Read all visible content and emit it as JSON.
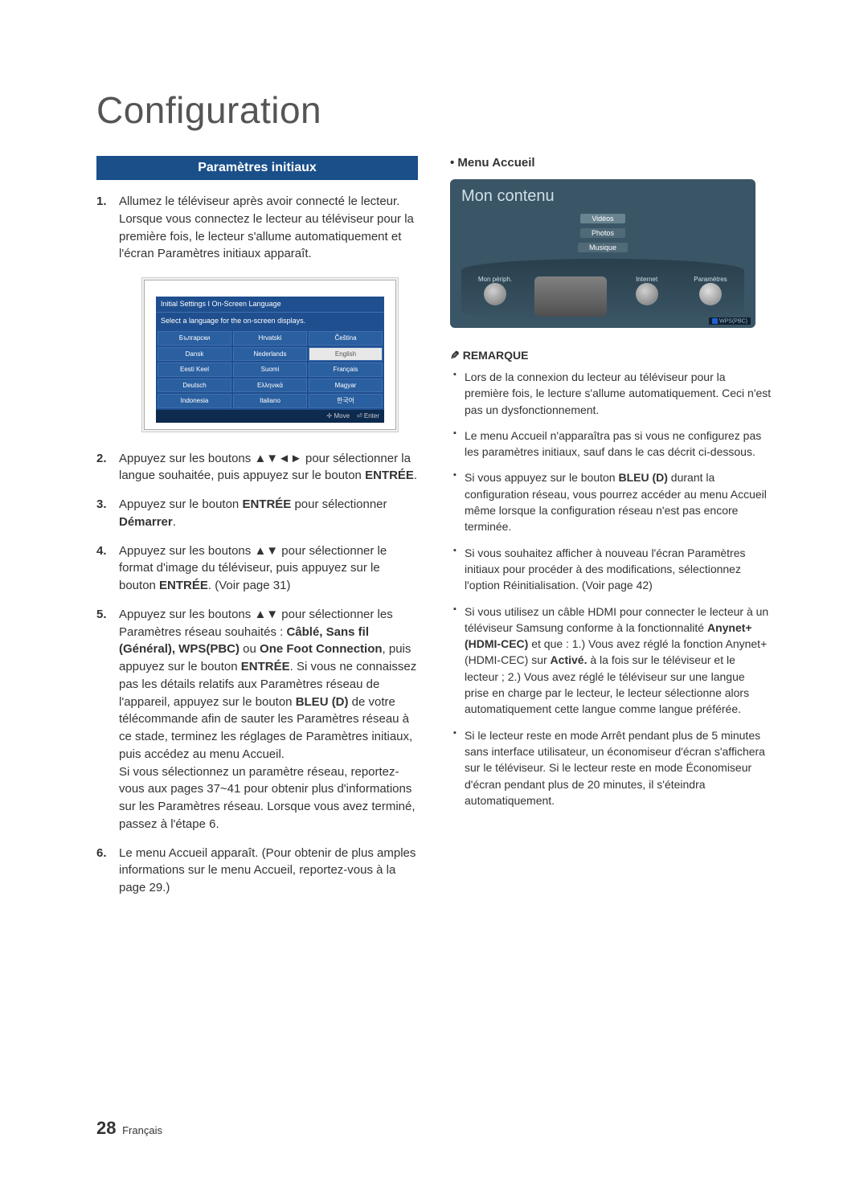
{
  "title": "Configuration",
  "section_title": "Paramètres initiaux",
  "steps": {
    "s1": "Allumez le téléviseur après avoir connecté le lecteur. Lorsque vous connectez le lecteur au téléviseur pour la première fois, le lecteur s'allume automatiquement et l'écran Paramètres initiaux apparaît.",
    "s2_a": "Appuyez sur les boutons ",
    "s2_arrows": "▲▼◄►",
    "s2_b": " pour sélectionner la langue souhaitée, puis appuyez sur le bouton ",
    "s2_btn": "ENTRÉE",
    "s2_c": ".",
    "s3_a": "Appuyez sur le bouton ",
    "s3_btn": "ENTRÉE",
    "s3_b": " pour sélectionner ",
    "s3_btn2": "Démarrer",
    "s3_c": ".",
    "s4_a": "Appuyez sur les boutons ",
    "s4_arrows": "▲▼",
    "s4_b": " pour sélectionner le format d'image du téléviseur, puis appuyez sur le bouton ",
    "s4_btn": "ENTRÉE",
    "s4_c": ". (Voir page 31)",
    "s5_a": "Appuyez sur les boutons ",
    "s5_arrows": "▲▼",
    "s5_b": " pour sélectionner les Paramètres réseau souhaités : ",
    "s5_opts": "Câblé, Sans fil (Général), WPS(PBC)",
    "s5_c": " ou ",
    "s5_opt2": "One Foot Connection",
    "s5_d": ", puis appuyez sur le bouton ",
    "s5_btn": "ENTRÉE",
    "s5_e": ". Si vous ne connaissez pas les détails relatifs aux Paramètres réseau de l'appareil, appuyez sur le bouton ",
    "s5_btn2": "BLEU (D)",
    "s5_f": " de votre télécommande afin de sauter les Paramètres réseau à ce stade, terminez les réglages de Paramètres initiaux, puis accédez au menu Accueil.",
    "s5_g": "Si vous sélectionnez un paramètre réseau, reportez-vous aux pages 37~41 pour obtenir plus d'informations sur les Paramètres réseau. Lorsque vous avez terminé, passez à l'étape 6.",
    "s6": "Le menu Accueil apparaît. (Pour obtenir de plus amples informations sur le menu Accueil, reportez-vous à la page 29.)"
  },
  "osd": {
    "title": "Initial Settings I On-Screen Language",
    "sub": "Select a language for the on-screen displays.",
    "languages": [
      [
        "Български",
        "Hrvatski",
        "Čeština"
      ],
      [
        "Dansk",
        "Nederlands",
        "English"
      ],
      [
        "Eesti Keel",
        "Suomi",
        "Français"
      ],
      [
        "Deutsch",
        "Ελληνικά",
        "Magyar"
      ],
      [
        "Indonesia",
        "Italiano",
        "한국어"
      ]
    ],
    "highlight_row": 1,
    "highlight_col": 2,
    "footer_move": "Move",
    "footer_enter": "Enter"
  },
  "right": {
    "heading": "Menu Accueil",
    "tv": {
      "title": "Mon contenu",
      "tabs": [
        "Vidéos",
        "Photos",
        "Musique"
      ],
      "left_label": "Mon périph.",
      "right_label1": "Internet",
      "right_label2": "Paramètres",
      "footer_pill": "WPS(PBC)"
    },
    "remark_title": "REMARQUE",
    "remarks": [
      "Lors de la connexion du lecteur au téléviseur pour la première fois, le lecture s'allume automatiquement. Ceci n'est pas un dysfonctionnement.",
      "Le menu Accueil n'apparaîtra pas si vous ne configurez pas les paramètres initiaux, sauf dans le cas décrit ci-dessous.",
      "Si vous appuyez sur le bouton BLEU (D) durant la configuration réseau, vous pourrez accéder au menu Accueil même lorsque la configuration réseau n'est pas encore terminée.",
      "Si vous souhaitez afficher à nouveau l'écran Paramètres initiaux pour procéder à des modifications, sélectionnez l'option Réinitialisation. (Voir page 42)",
      "Si vous utilisez un câble HDMI pour connecter le lecteur à un téléviseur Samsung conforme à la fonctionnalité Anynet+(HDMI-CEC) et que : 1.) Vous avez réglé la fonction Anynet+(HDMI-CEC) sur Activé. à la fois sur le téléviseur et le lecteur ; 2.) Vous avez réglé le téléviseur sur une langue prise en charge par le lecteur, le lecteur sélectionne alors automatiquement cette langue comme langue préférée.",
      "Si le lecteur reste en mode Arrêt pendant plus de 5 minutes sans interface utilisateur, un économiseur d'écran s'affichera sur le téléviseur. Si le lecteur reste en mode Économiseur d'écran pendant plus de 20 minutes, il s'éteindra automatiquement."
    ],
    "remark_bold": {
      "2": [
        "BLEU (D)"
      ],
      "4": [
        "Anynet+(HDMI-CEC)",
        "Anynet+(HDMI-CEC)",
        "Activé."
      ]
    }
  },
  "footer": {
    "page": "28",
    "lang": "Français"
  }
}
